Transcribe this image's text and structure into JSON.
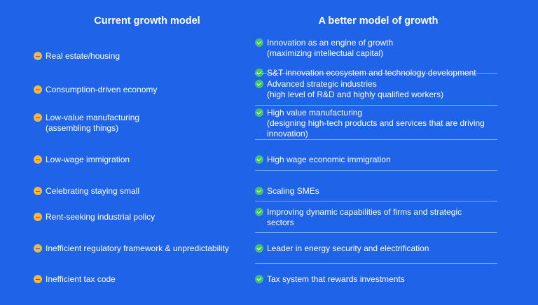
{
  "headers": {
    "current": "Current growth model",
    "better": "A better model of growth"
  },
  "colors": {
    "background": "#1e63e8",
    "current_icon": "#f6b73c",
    "better_icon": "#43c26b"
  },
  "icons": {
    "current": "minus-circle-icon",
    "better": "check-circle-icon"
  },
  "rows": [
    {
      "current": "Real estate/housing",
      "better": [
        [
          "Innovation as an engine of growth",
          "(maximizing intellectual capital)"
        ],
        [
          "S&T innovation ecosystem and technology development"
        ]
      ]
    },
    {
      "current": "Consumption-driven economy",
      "better": [
        [
          "Advanced strategic industries",
          "(high level of R&D and highly qualified workers)"
        ]
      ]
    },
    {
      "current": "Low-value manufacturing\n(assembling things)",
      "better": [
        [
          "High value manufacturing",
          "(designing high-tech products and services that are driving",
          "innovation)"
        ]
      ]
    },
    {
      "current": "Low-wage immigration",
      "better": [
        [
          "High wage economic immigration"
        ]
      ]
    },
    {
      "current": "Celebrating staying small",
      "better": [
        [
          "Scaling SMEs"
        ]
      ]
    },
    {
      "current": "Rent-seeking industrial policy",
      "better": [
        [
          "Improving dynamic capabilities of firms and strategic",
          "sectors"
        ]
      ]
    },
    {
      "current": "Inefficient regulatory framework & unpredictability",
      "better": [
        [
          "Leader in energy security and electrification"
        ]
      ]
    },
    {
      "current": "Inefficient tax code",
      "better": [
        [
          "Tax system that rewards investments"
        ]
      ]
    }
  ]
}
